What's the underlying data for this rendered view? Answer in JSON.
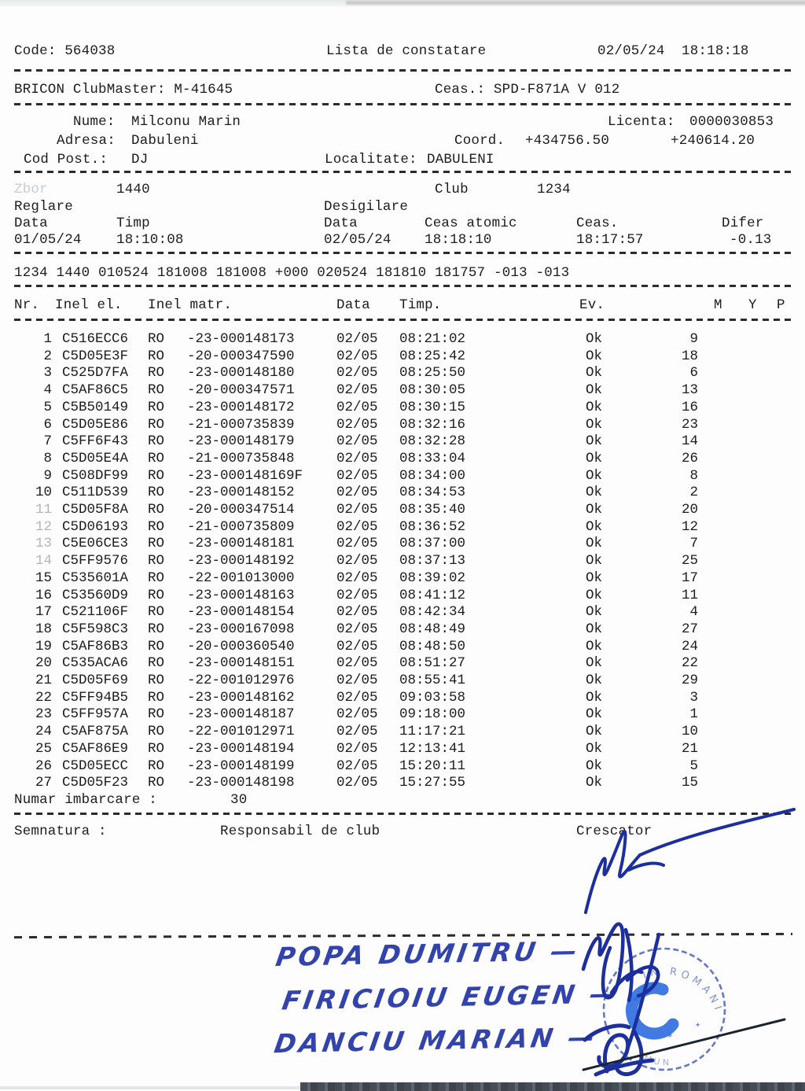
{
  "header": {
    "code": "Code: 564038",
    "title": "Lista de constatare",
    "datetime": "02/05/24  18:18:18"
  },
  "device_line": {
    "left": "BRICON ClubMaster: M-41645",
    "right": "Ceas.: SPD-F871A V 012"
  },
  "owner": {
    "nume_label": "Nume:",
    "nume": "Milconu Marin",
    "licenta_label": "Licenta:",
    "licenta": "0000030853",
    "adresa_label": "Adresa:",
    "adresa": "Dabuleni",
    "coord_label": "Coord.",
    "coord_lat": "+434756.50",
    "coord_lon": "+240614.20",
    "cod_post_label": "Cod Post.:",
    "cod_post": "DJ",
    "localitate_label": "Localitate:",
    "localitate": "DABULENI"
  },
  "flight": {
    "zbor_label": "Zbor",
    "zbor_value": "1440",
    "club_label": "Club",
    "club_value": "1234",
    "reglare_label": "Reglare",
    "desigilare_label": "Desigilare",
    "reglare_data_label": "Data",
    "reglare_timp_label": "Timp",
    "desig_data_label": "Data",
    "ceas_atomic_label": "Ceas atomic",
    "ceas_label": "Ceas.",
    "difer_label": "Difer",
    "reglare_data": "01/05/24",
    "reglare_timp": "18:10:08",
    "desig_data": "02/05/24",
    "ceas_atomic": "18:18:10",
    "ceas": "18:17:57",
    "difer": "-0.13"
  },
  "summary_line": "1234 1440 010524 181008 181008 +000 020524 181810 181757 -013 -013",
  "table": {
    "headers": [
      "Nr.",
      "Inel el.",
      "Inel matr.",
      "Data",
      "Timp.",
      "Ev.",
      "M",
      "Y",
      "P"
    ],
    "faded_nr_rows": [
      11,
      12,
      13,
      14
    ],
    "rows": [
      [
        "1",
        "C516ECC6",
        "RO",
        "-23-000148173",
        "02/05",
        "08:21:02",
        "Ok",
        "9"
      ],
      [
        "2",
        "C5D05E3F",
        "RO",
        "-20-000347590",
        "02/05",
        "08:25:42",
        "Ok",
        "18"
      ],
      [
        "3",
        "C525D7FA",
        "RO",
        "-23-000148180",
        "02/05",
        "08:25:50",
        "Ok",
        "6"
      ],
      [
        "4",
        "C5AF86C5",
        "RO",
        "-20-000347571",
        "02/05",
        "08:30:05",
        "Ok",
        "13"
      ],
      [
        "5",
        "C5B50149",
        "RO",
        "-23-000148172",
        "02/05",
        "08:30:15",
        "Ok",
        "16"
      ],
      [
        "6",
        "C5D05E86",
        "RO",
        "-21-000735839",
        "02/05",
        "08:32:16",
        "Ok",
        "23"
      ],
      [
        "7",
        "C5FF6F43",
        "RO",
        "-23-000148179",
        "02/05",
        "08:32:28",
        "Ok",
        "14"
      ],
      [
        "8",
        "C5D05E4A",
        "RO",
        "-21-000735848",
        "02/05",
        "08:33:04",
        "Ok",
        "26"
      ],
      [
        "9",
        "C508DF99",
        "RO",
        "-23-000148169F",
        "02/05",
        "08:34:00",
        "Ok",
        "8"
      ],
      [
        "10",
        "C511D539",
        "RO",
        "-23-000148152",
        "02/05",
        "08:34:53",
        "Ok",
        "2"
      ],
      [
        "11",
        "C5D05F8A",
        "RO",
        "-20-000347514",
        "02/05",
        "08:35:40",
        "Ok",
        "20"
      ],
      [
        "12",
        "C5D06193",
        "RO",
        "-21-000735809",
        "02/05",
        "08:36:52",
        "Ok",
        "12"
      ],
      [
        "13",
        "C5E06CE3",
        "RO",
        "-23-000148181",
        "02/05",
        "08:37:00",
        "Ok",
        "7"
      ],
      [
        "14",
        "C5FF9576",
        "RO",
        "-23-000148192",
        "02/05",
        "08:37:13",
        "Ok",
        "25"
      ],
      [
        "15",
        "C535601A",
        "RO",
        "-22-001013000",
        "02/05",
        "08:39:02",
        "Ok",
        "17"
      ],
      [
        "16",
        "C53560D9",
        "RO",
        "-23-000148163",
        "02/05",
        "08:41:12",
        "Ok",
        "11"
      ],
      [
        "17",
        "C521106F",
        "RO",
        "-23-000148154",
        "02/05",
        "08:42:34",
        "Ok",
        "4"
      ],
      [
        "18",
        "C5F598C3",
        "RO",
        "-23-000167098",
        "02/05",
        "08:48:49",
        "Ok",
        "27"
      ],
      [
        "19",
        "C5AF86B3",
        "RO",
        "-20-000360540",
        "02/05",
        "08:48:50",
        "Ok",
        "24"
      ],
      [
        "20",
        "C535ACA6",
        "RO",
        "-23-000148151",
        "02/05",
        "08:51:27",
        "Ok",
        "22"
      ],
      [
        "21",
        "C5D05F69",
        "RO",
        "-22-001012976",
        "02/05",
        "08:55:41",
        "Ok",
        "29"
      ],
      [
        "22",
        "C5FF94B5",
        "RO",
        "-23-000148162",
        "02/05",
        "09:03:58",
        "Ok",
        "3"
      ],
      [
        "23",
        "C5FF957A",
        "RO",
        "-23-000148187",
        "02/05",
        "09:18:00",
        "Ok",
        "1"
      ],
      [
        "24",
        "C5AF875A",
        "RO",
        "-22-001012971",
        "02/05",
        "11:17:21",
        "Ok",
        "10"
      ],
      [
        "25",
        "C5AF86E9",
        "RO",
        "-23-000148194",
        "02/05",
        "12:13:41",
        "Ok",
        "21"
      ],
      [
        "26",
        "C5D05ECC",
        "RO",
        "-23-000148199",
        "02/05",
        "15:20:11",
        "Ok",
        "5"
      ],
      [
        "27",
        "C5D05F23",
        "RO",
        "-23-000148198",
        "02/05",
        "15:27:55",
        "Ok",
        "15"
      ]
    ]
  },
  "footer": {
    "numar_label": "Numar imbarcare :",
    "numar_value": "30",
    "semnatura_label": "Semnatura :",
    "responsabil_label": "Responsabil de club",
    "crescator_label": "Crescator"
  },
  "handwriting": {
    "name1": "POPA DUMITRU —",
    "name2": "FIRICIOIU EUGEN —",
    "name3": "DANCIU MARIAN —"
  },
  "stamp": {
    "ring_text_top": "IN ROMANIA",
    "ring_text_bottom": "MUN",
    "color": "#3652b8",
    "ink_blob_color": "#2e6be0"
  },
  "colors": {
    "ink": "#1d1d1d",
    "pen_blue": "#1c2f9c",
    "faded_print": "#c7cdd1"
  }
}
